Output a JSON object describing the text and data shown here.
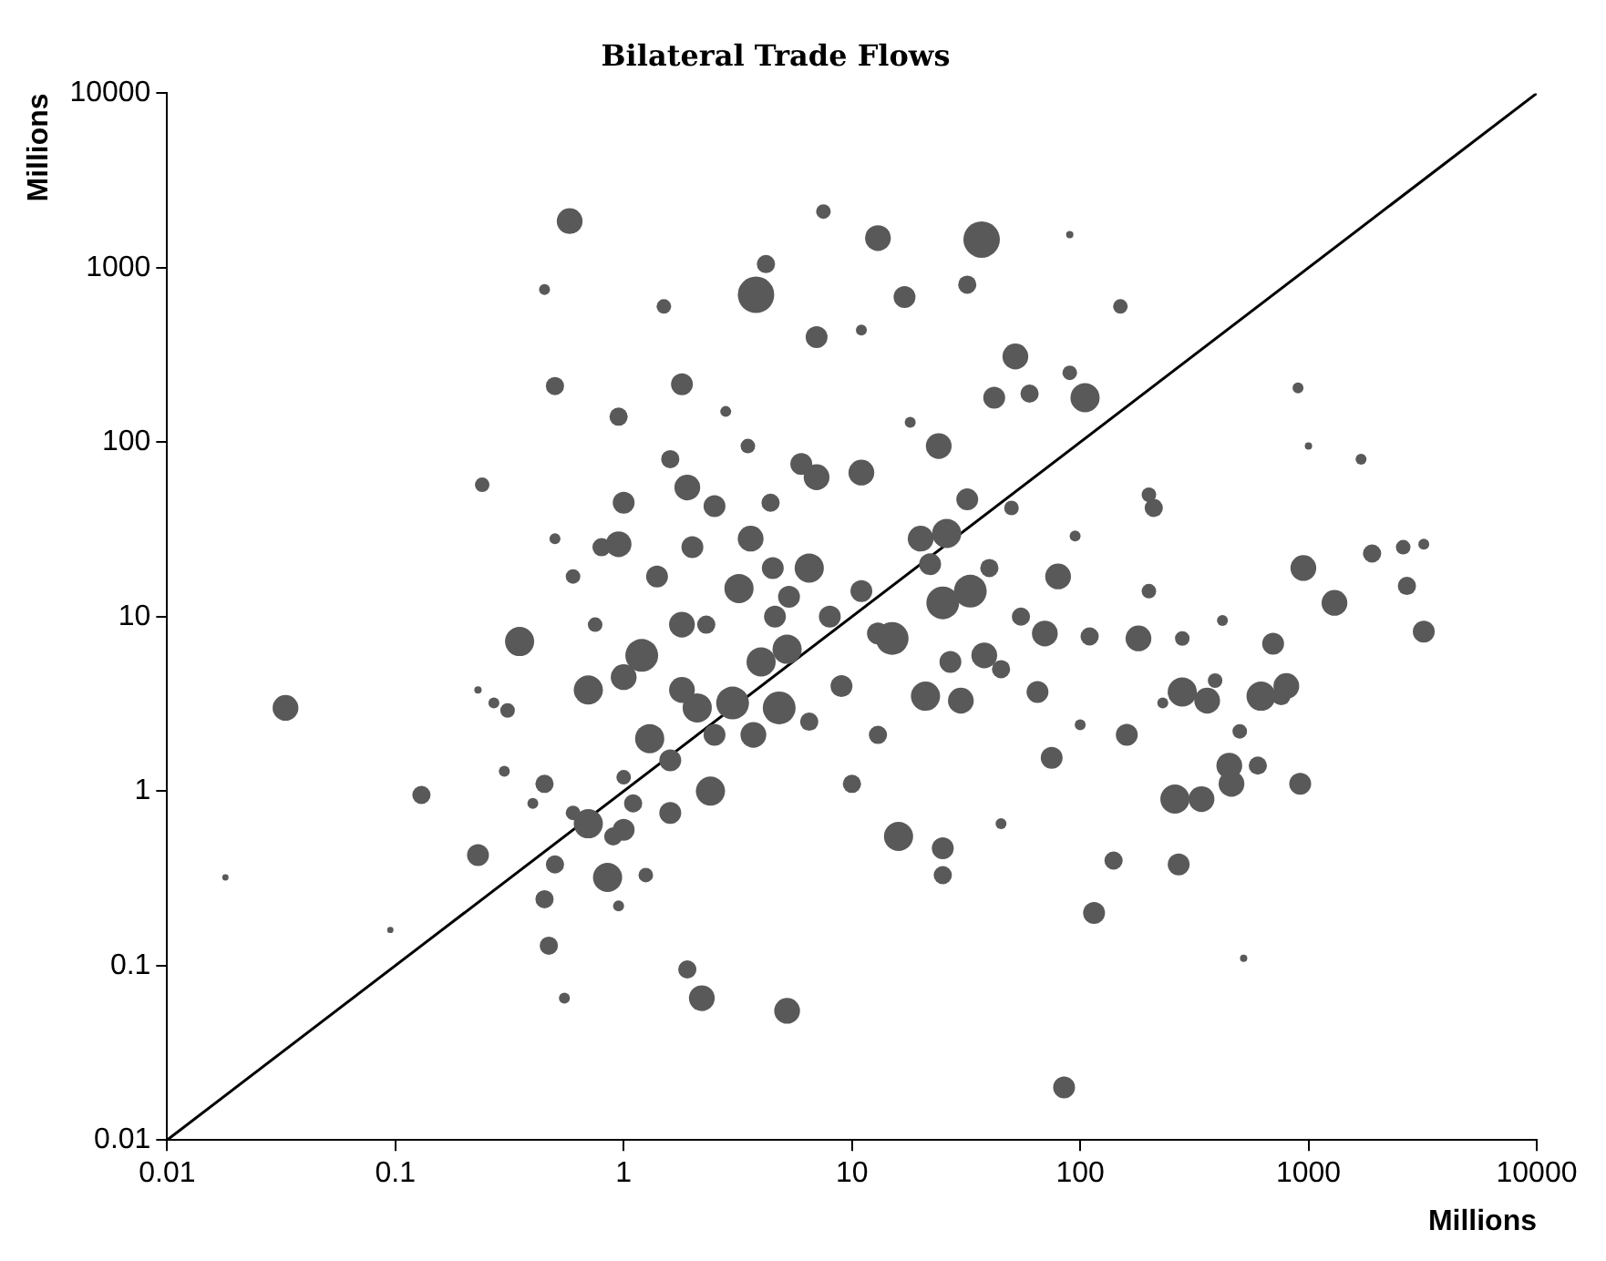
{
  "chart_data": {
    "type": "bubble",
    "title": "Bilateral Trade Flows",
    "xlabel": "Millions",
    "ylabel": "Millions",
    "log": "xy",
    "grid": false,
    "legend": false,
    "xlim": [
      0.01,
      10000
    ],
    "xticks": [
      0.01,
      0.1,
      1,
      10,
      100,
      1000,
      10000
    ],
    "ylim": [
      0.01,
      10000
    ],
    "yticks": [
      0.01,
      0.1,
      1,
      10,
      100,
      1000,
      10000
    ],
    "series": [
      {
        "color": "#595959",
        "x": [
          0.033,
          0.018,
          0.095,
          0.13,
          0.23,
          0.23,
          0.24,
          0.27,
          0.3,
          0.31,
          0.35,
          0.4,
          0.45,
          0.45,
          0.45,
          0.47,
          0.5,
          0.5,
          0.5,
          0.55,
          0.58,
          0.6,
          0.6,
          0.7,
          0.7,
          0.75,
          0.8,
          0.85,
          0.9,
          0.95,
          1.0,
          0.95,
          1.0,
          1.0,
          1.0,
          0.95,
          1.2,
          1.3,
          1.25,
          1.1,
          1.4,
          1.5,
          1.6,
          1.6,
          1.6,
          1.8,
          1.9,
          1.8,
          1.8,
          1.9,
          2.0,
          2.1,
          2.2,
          2.3,
          2.4,
          2.5,
          2.5,
          2.8,
          3.0,
          3.2,
          3.5,
          3.8,
          3.6,
          3.7,
          4.0,
          4.2,
          4.4,
          4.5,
          4.6,
          4.8,
          5.2,
          5.2,
          5.3,
          6,
          6.5,
          6.5,
          7.0,
          7.5,
          7.0,
          8,
          9,
          10,
          11,
          11,
          11,
          13,
          13,
          13,
          15,
          16,
          17,
          18,
          20,
          21,
          22,
          24,
          25,
          25,
          25,
          26,
          27,
          30,
          32,
          32,
          33,
          37,
          38,
          40,
          42,
          45,
          45,
          50,
          52,
          55,
          60,
          65,
          70,
          75,
          80,
          85,
          90,
          90,
          95,
          100,
          105,
          110,
          115,
          140,
          150,
          160,
          180,
          200,
          200,
          210,
          230,
          260,
          270,
          280,
          280,
          340,
          360,
          390,
          420,
          450,
          460,
          500,
          520,
          600,
          620,
          700,
          760,
          800,
          900,
          920,
          950,
          1000,
          1300,
          1700,
          1900,
          2600,
          2700,
          3200,
          3200
        ],
        "values": [
          3.0,
          0.32,
          0.16,
          0.95,
          0.43,
          3.8,
          57,
          3.2,
          1.3,
          2.9,
          7.2,
          0.85,
          750,
          1.1,
          0.24,
          0.13,
          0.38,
          210,
          28,
          0.065,
          1850,
          0.75,
          17,
          3.8,
          0.65,
          9,
          25,
          0.32,
          0.55,
          140,
          45,
          26,
          4.5,
          1.2,
          0.6,
          0.22,
          6,
          2,
          0.33,
          0.85,
          17,
          600,
          80,
          1.5,
          0.75,
          215,
          55,
          9,
          3.8,
          0.095,
          25,
          3,
          0.065,
          9,
          1.0,
          43,
          2.1,
          150,
          3.2,
          14.5,
          95,
          700,
          28,
          2.1,
          5.5,
          1050,
          45,
          19,
          10,
          3,
          6.5,
          0.055,
          13,
          75,
          19,
          2.5,
          400,
          2100,
          63,
          10,
          4,
          1.1,
          14,
          67,
          440,
          1480,
          2.1,
          8,
          7.5,
          0.55,
          680,
          130,
          28,
          3.5,
          20,
          95,
          12,
          0.47,
          0.33,
          30,
          5.5,
          3.3,
          800,
          47,
          14,
          1450,
          6,
          19,
          180,
          5,
          0.65,
          42,
          310,
          10,
          190,
          3.7,
          8,
          1.55,
          17,
          0.02,
          1550,
          250,
          29,
          2.4,
          180,
          7.7,
          0.2,
          0.4,
          600,
          2.1,
          7.5,
          50,
          14,
          42,
          3.2,
          0.9,
          0.38,
          3.7,
          7.5,
          0.9,
          3.3,
          4.3,
          9.5,
          1.4,
          1.1,
          2.2,
          0.11,
          1.4,
          3.5,
          7,
          3.5,
          4,
          205,
          1.1,
          19,
          95,
          12,
          80,
          23,
          25,
          15,
          26,
          8.2
        ],
        "sizes": [
          0.5,
          0.03,
          0.03,
          0.25,
          0.36,
          0.04,
          0.16,
          0.09,
          0.09,
          0.16,
          0.64,
          0.09,
          0.09,
          0.25,
          0.25,
          0.25,
          0.25,
          0.25,
          0.09,
          0.09,
          0.5,
          0.16,
          0.16,
          0.64,
          0.64,
          0.16,
          0.25,
          0.64,
          0.25,
          0.25,
          0.36,
          0.5,
          0.5,
          0.16,
          0.36,
          0.09,
          0.81,
          0.64,
          0.16,
          0.25,
          0.36,
          0.16,
          0.25,
          0.36,
          0.36,
          0.36,
          0.5,
          0.5,
          0.5,
          0.25,
          0.36,
          0.64,
          0.5,
          0.25,
          0.64,
          0.36,
          0.36,
          0.09,
          0.81,
          0.64,
          0.16,
          1,
          0.5,
          0.5,
          0.64,
          0.25,
          0.25,
          0.36,
          0.36,
          0.81,
          0.64,
          0.5,
          0.36,
          0.36,
          0.64,
          0.25,
          0.36,
          0.16,
          0.5,
          0.36,
          0.36,
          0.25,
          0.36,
          0.5,
          0.09,
          0.5,
          0.25,
          0.36,
          0.81,
          0.64,
          0.36,
          0.09,
          0.5,
          0.64,
          0.36,
          0.5,
          0.81,
          0.36,
          0.25,
          0.64,
          0.36,
          0.5,
          0.25,
          0.36,
          0.81,
          1,
          0.5,
          0.25,
          0.36,
          0.25,
          0.09,
          0.16,
          0.5,
          0.25,
          0.25,
          0.36,
          0.5,
          0.36,
          0.5,
          0.36,
          0.04,
          0.16,
          0.09,
          0.09,
          0.64,
          0.25,
          0.36,
          0.25,
          0.16,
          0.36,
          0.5,
          0.16,
          0.16,
          0.25,
          0.09,
          0.64,
          0.36,
          0.64,
          0.16,
          0.5,
          0.5,
          0.16,
          0.09,
          0.5,
          0.5,
          0.16,
          0.04,
          0.25,
          0.64,
          0.36,
          0.25,
          0.5,
          0.09,
          0.36,
          0.5,
          0.04,
          0.5,
          0.09,
          0.25,
          0.16,
          0.25,
          0.09,
          0.36
        ]
      },
      {
        "type": "line",
        "color": "#000000",
        "x": [
          0.01,
          10000
        ],
        "values": [
          0.01,
          10000
        ]
      }
    ]
  }
}
